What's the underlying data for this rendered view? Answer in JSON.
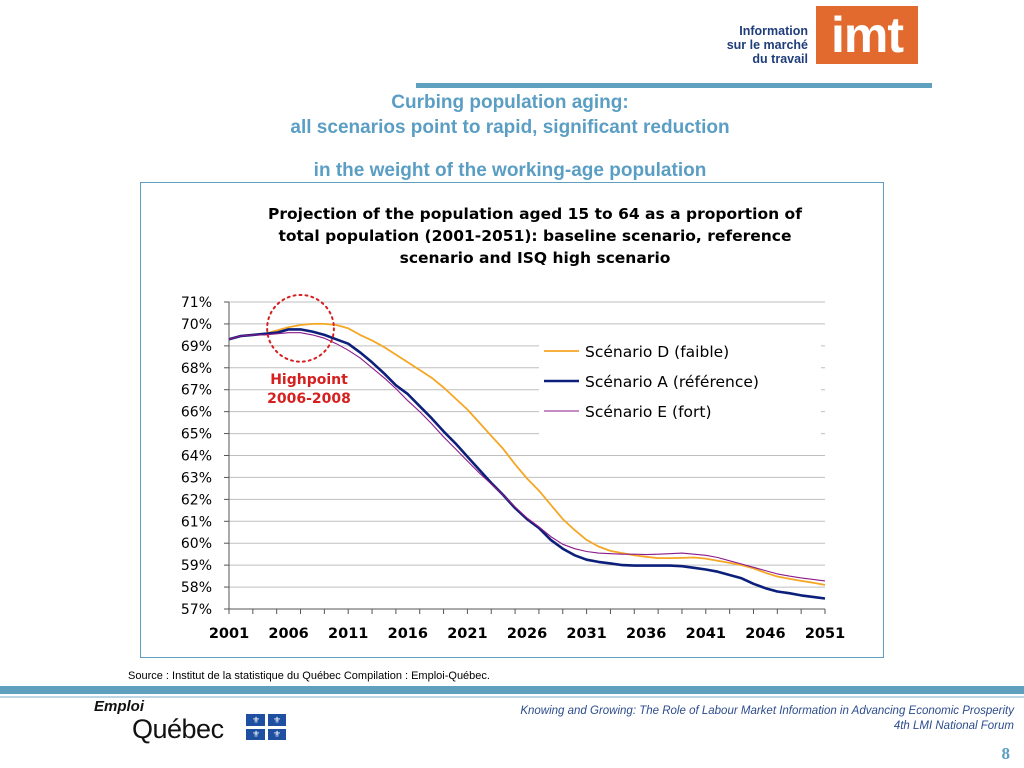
{
  "logo": {
    "line1": "Information",
    "line2": "sur le marché",
    "line3": "du travail",
    "mark": "imt",
    "color": "#e36a2e"
  },
  "title": {
    "line1": "Curbing population aging:",
    "line2": "all scenarios point to rapid, significant reduction",
    "line3": "in the weight of the working-age population"
  },
  "chart_data": {
    "type": "line",
    "title_lines": [
      "Projection of the population aged 15 to 64 as a proportion of",
      "total population (2001-2051): baseline scenario, reference",
      "scenario and ISQ high scenario"
    ],
    "xlabel": "",
    "ylabel": "",
    "xlim": [
      2001,
      2051
    ],
    "ylim": [
      57,
      71
    ],
    "x_ticks": [
      2001,
      2006,
      2011,
      2016,
      2021,
      2026,
      2031,
      2036,
      2041,
      2046,
      2051
    ],
    "y_ticks": [
      57,
      58,
      59,
      60,
      61,
      62,
      63,
      64,
      65,
      66,
      67,
      68,
      69,
      70,
      71
    ],
    "y_tick_labels": [
      "57%",
      "58%",
      "59%",
      "60%",
      "61%",
      "62%",
      "63%",
      "64%",
      "65%",
      "66%",
      "67%",
      "68%",
      "69%",
      "70%",
      "71%"
    ],
    "grid": "horizontal",
    "legend_position": "right",
    "x": [
      2001,
      2002,
      2003,
      2004,
      2005,
      2006,
      2007,
      2008,
      2009,
      2010,
      2011,
      2012,
      2013,
      2014,
      2015,
      2016,
      2017,
      2018,
      2019,
      2020,
      2021,
      2022,
      2023,
      2024,
      2025,
      2026,
      2027,
      2028,
      2029,
      2030,
      2031,
      2032,
      2033,
      2034,
      2035,
      2036,
      2037,
      2038,
      2039,
      2040,
      2041,
      2042,
      2043,
      2044,
      2045,
      2046,
      2047,
      2048,
      2049,
      2050,
      2051
    ],
    "series": [
      {
        "name": "Scénario D (faible)",
        "color": "#f5a623",
        "values": [
          69.3,
          69.45,
          69.5,
          69.55,
          69.7,
          69.85,
          69.95,
          70.0,
          70.0,
          69.95,
          69.8,
          69.5,
          69.25,
          68.95,
          68.6,
          68.25,
          67.9,
          67.55,
          67.1,
          66.6,
          66.1,
          65.5,
          64.9,
          64.3,
          63.6,
          62.95,
          62.4,
          61.75,
          61.1,
          60.6,
          60.15,
          59.85,
          59.65,
          59.55,
          59.45,
          59.38,
          59.32,
          59.32,
          59.33,
          59.35,
          59.3,
          59.2,
          59.1,
          59.0,
          58.85,
          58.65,
          58.48,
          58.38,
          58.28,
          58.2,
          58.1
        ]
      },
      {
        "name": "Scénario A  (référence)",
        "color": "#0c1f7a",
        "values": [
          69.3,
          69.45,
          69.5,
          69.55,
          69.6,
          69.75,
          69.75,
          69.65,
          69.5,
          69.3,
          69.1,
          68.7,
          68.25,
          67.75,
          67.2,
          66.8,
          66.25,
          65.7,
          65.1,
          64.55,
          63.95,
          63.35,
          62.75,
          62.2,
          61.6,
          61.1,
          60.7,
          60.15,
          59.75,
          59.45,
          59.25,
          59.15,
          59.08,
          59.0,
          58.98,
          58.98,
          58.98,
          58.98,
          58.95,
          58.88,
          58.8,
          58.7,
          58.55,
          58.4,
          58.15,
          57.95,
          57.8,
          57.72,
          57.62,
          57.55,
          57.48
        ]
      },
      {
        "name": "Scénario E (fort)",
        "color": "#8b1a8b",
        "values": [
          69.3,
          69.45,
          69.5,
          69.5,
          69.55,
          69.6,
          69.6,
          69.5,
          69.35,
          69.1,
          68.8,
          68.45,
          68.0,
          67.55,
          67.05,
          66.5,
          66.0,
          65.45,
          64.85,
          64.3,
          63.75,
          63.2,
          62.7,
          62.2,
          61.65,
          61.15,
          60.75,
          60.3,
          59.95,
          59.75,
          59.62,
          59.55,
          59.52,
          59.5,
          59.5,
          59.48,
          59.5,
          59.52,
          59.55,
          59.5,
          59.45,
          59.35,
          59.2,
          59.05,
          58.9,
          58.75,
          58.6,
          58.5,
          58.42,
          58.35,
          58.28
        ]
      }
    ],
    "annotation": {
      "text_line1": "Highpoint",
      "text_line2": "2006-2008",
      "color": "#d62020",
      "circle_center": {
        "x": 2007,
        "y": 69.8
      },
      "circle_radius_years": 2.8
    }
  },
  "source_text": "Source : Institut de la statistique du Québec  Compilation : Emploi-Québec.",
  "footer": {
    "logo_emploi": "Emploi",
    "logo_quebec": "Québec",
    "line1": "Knowing and Growing: The Role of Labour Market Information in Advancing Economic Prosperity",
    "line2": "4th LMI National Forum",
    "page": "8"
  }
}
